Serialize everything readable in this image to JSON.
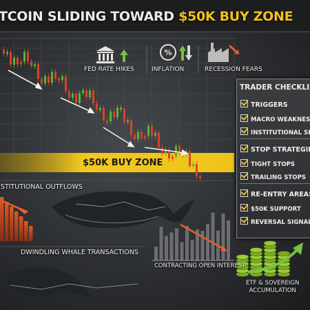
{
  "header": {
    "title": "TCOIN SLIDING TOWARD",
    "highlight": "$50K BUY ZONE"
  },
  "drivers": [
    "FED RATE HIKES",
    "INFLATION",
    "RECESSION FEARS"
  ],
  "buy_zone": "$50K BUY ZONE",
  "checklist": {
    "title": "TRADER CHECKLIS",
    "groups": [
      {
        "heading": "TRIGGERS",
        "items": [
          "MACRO WEAKNESS",
          "INSTITUTIONAL SELLI"
        ]
      },
      {
        "heading": "STOP STRATEGIES",
        "items": [
          "TIGHT STOPS",
          "TRAILING STOPS"
        ]
      },
      {
        "heading": "RE-ENTRY AREAS",
        "items": [
          "$50K SUPPORT",
          "REVERSAL SIGNALS"
        ]
      }
    ]
  },
  "sections": {
    "outflows": "ISTITUTIONAL OUTFLOWS",
    "whales": "DWINDLING WHALE TRANSACTIONS",
    "open_interest": "CONTRACTING OPEN INTEREST",
    "etf": [
      "ETF & SOVEREIGN",
      "ACCUMULATION"
    ]
  }
}
